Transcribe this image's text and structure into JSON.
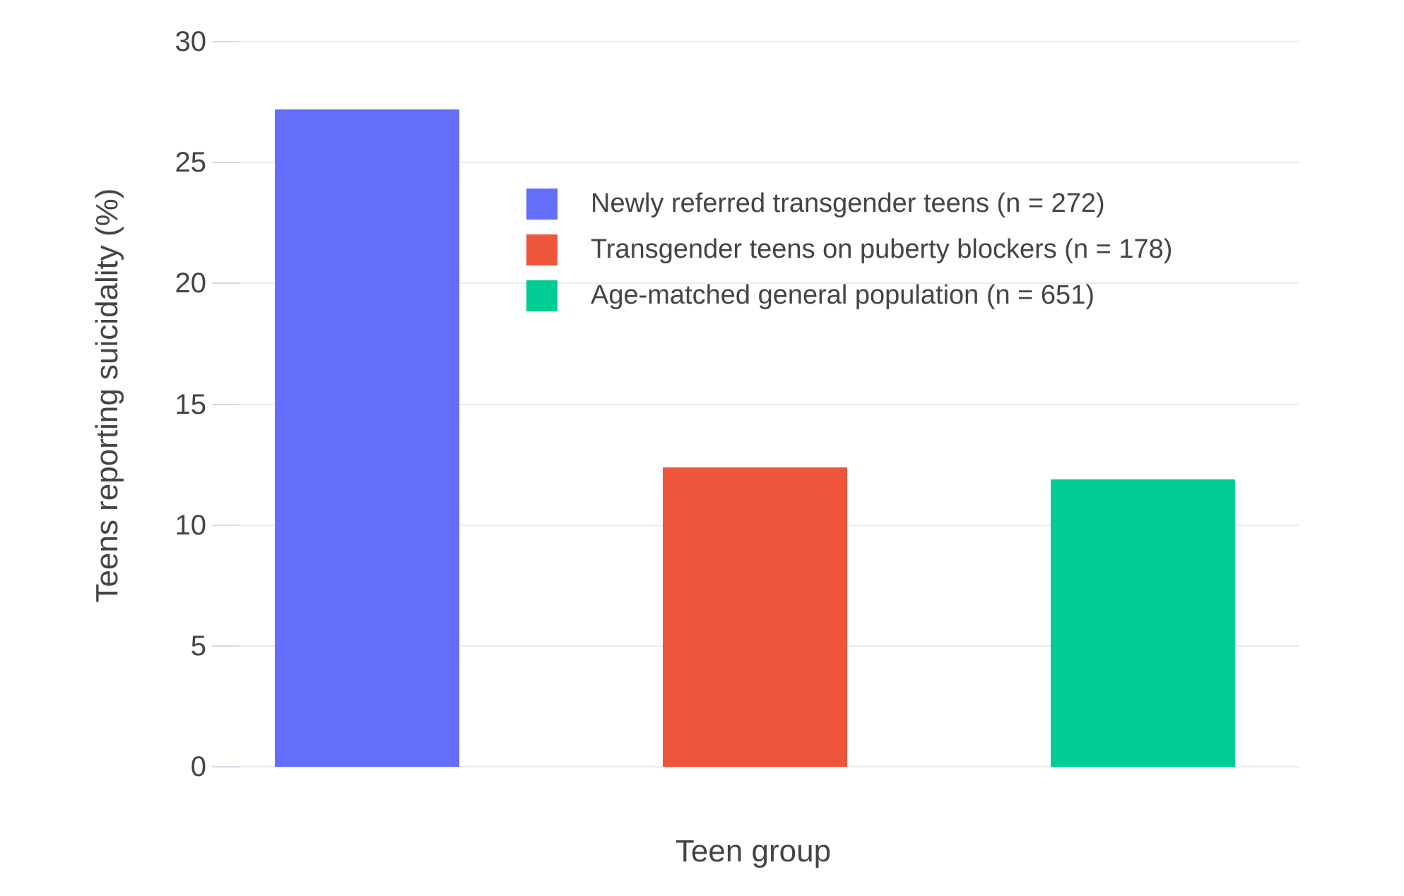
{
  "colors": {
    "background": "#FFFFFF",
    "grid_line": "#E7ECF4",
    "tick_stub": "#D2DAE6",
    "text": "#444444",
    "bar_blue": "#636EFA",
    "bar_red": "#EF553B",
    "bar_green": "#00CC96"
  },
  "chart_data": {
    "type": "bar",
    "title": "",
    "xlabel": "Teen group",
    "ylabel": "Teens reporting suicidality (%)",
    "ylim": [
      0,
      30
    ],
    "yticks": [
      0,
      5,
      10,
      15,
      20,
      25,
      30
    ],
    "grid": true,
    "legend_position": "inside upper-center",
    "categories": [
      "Newly referred transgender teens (n = 272)",
      "Transgender teens on puberty blockers (n = 178)",
      "Age-matched general population (n = 651)"
    ],
    "series": [
      {
        "name": "Newly referred transgender teens (n = 272)",
        "value": 27.2,
        "color": "#636EFA"
      },
      {
        "name": "Transgender teens on puberty blockers (n = 178)",
        "value": 12.4,
        "color": "#EF553B"
      },
      {
        "name": "Age-matched general population (n = 651)",
        "value": 11.9,
        "color": "#00CC96"
      }
    ]
  }
}
